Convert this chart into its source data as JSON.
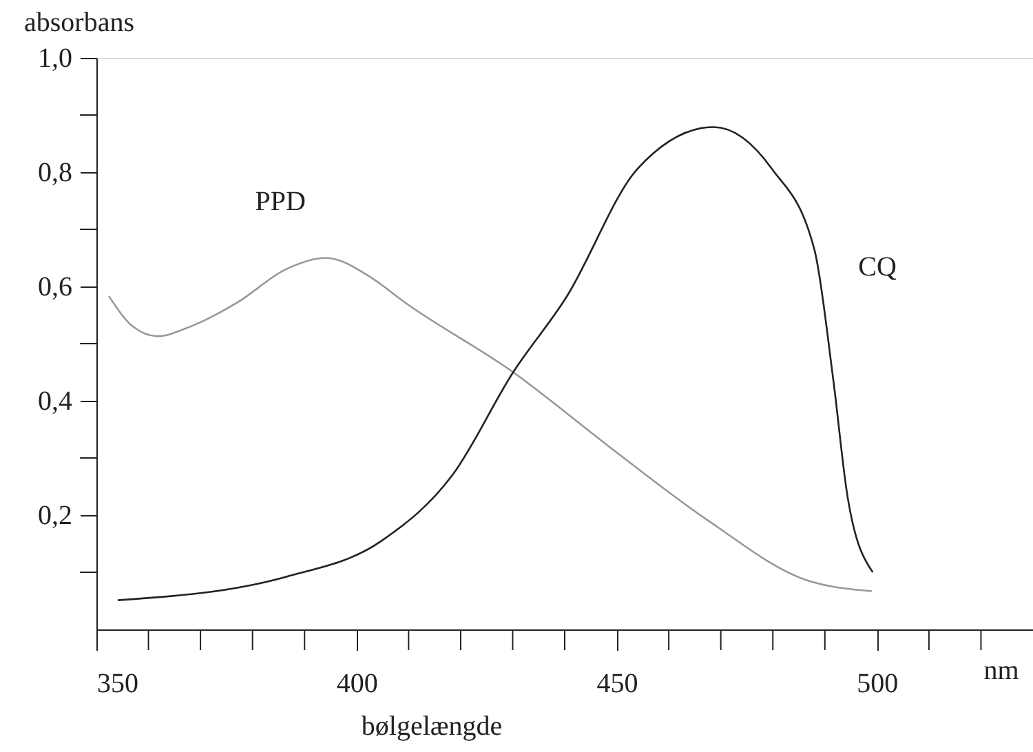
{
  "chart_data": {
    "type": "line",
    "xlabel": "bølgelængde",
    "ylabel": "absorbans",
    "xlim": [
      350,
      530
    ],
    "ylim": [
      0,
      1.0
    ],
    "xticks": [
      350,
      {
        "value": 360,
        "label": null
      },
      {
        "value": 370,
        "label": null
      },
      {
        "value": 380,
        "label": null
      },
      {
        "value": 390,
        "label": null
      },
      400,
      {
        "value": 410,
        "label": null
      },
      {
        "value": 420,
        "label": null
      },
      {
        "value": 430,
        "label": null
      },
      {
        "value": 440,
        "label": null
      },
      450,
      {
        "value": 460,
        "label": null
      },
      {
        "value": 470,
        "label": null
      },
      {
        "value": 480,
        "label": null
      },
      {
        "value": 490,
        "label": null
      },
      500,
      {
        "value": 510,
        "label": null
      },
      {
        "value": 520,
        "label": null
      }
    ],
    "yticks": [
      {
        "value": 0.1,
        "label": null
      },
      {
        "value": 0.2,
        "label": "0,2"
      },
      {
        "value": 0.3,
        "label": null
      },
      {
        "value": 0.4,
        "label": "0,4"
      },
      {
        "value": 0.5,
        "label": null
      },
      {
        "value": 0.6,
        "label": "0,6"
      },
      {
        "value": 0.7,
        "label": null
      },
      {
        "value": 0.8,
        "label": "0,8"
      },
      {
        "value": 0.9,
        "label": null
      },
      {
        "value": 1.0,
        "label": "1,0"
      }
    ],
    "grid": false,
    "legend": false,
    "marker": "none",
    "line_style": "solid",
    "annotations": [
      "nm"
    ],
    "series": [
      {
        "name": "PPD",
        "color": "#999999",
        "x": [
          352.4,
          357,
          361.7,
          368.1,
          377.1,
          386.4,
          394.1,
          402.9,
          409.3,
          430.1,
          449.5,
          467.8,
          486.2,
          499
        ],
        "values": [
          0.583,
          0.53,
          0.513,
          0.53,
          0.572,
          0.63,
          0.65,
          0.615,
          0.572,
          0.45,
          0.313,
          0.189,
          0.087,
          0.067
        ]
      },
      {
        "name": "CQ",
        "color": "#222222",
        "x": [
          354.1,
          386.4,
          404.8,
          418.5,
          430.1,
          440.3,
          454,
          468.6,
          479.8,
          488,
          491.6,
          494.4,
          499.2
        ],
        "values": [
          0.051,
          0.092,
          0.155,
          0.271,
          0.45,
          0.581,
          0.806,
          0.879,
          0.806,
          0.664,
          0.438,
          0.23,
          0.1
        ]
      }
    ]
  }
}
